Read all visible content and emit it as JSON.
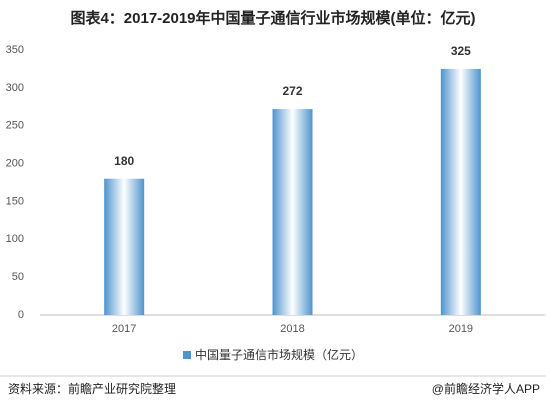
{
  "chart_data": {
    "type": "bar",
    "title": "图表4：2017-2019年中国量子通信行业市场规模(单位：亿元)",
    "categories": [
      "2017",
      "2018",
      "2019"
    ],
    "series": [
      {
        "name": "中国量子通信市场规模（亿元）",
        "color": "#4f94cd",
        "values": [
          180,
          272,
          325
        ]
      }
    ],
    "ylim": [
      0,
      350
    ],
    "yticks": [
      0,
      50,
      100,
      150,
      200,
      250,
      300,
      350
    ],
    "source": "资料来源：前瞻产业研究院整理",
    "credit": "@前瞻经济学人APP"
  }
}
